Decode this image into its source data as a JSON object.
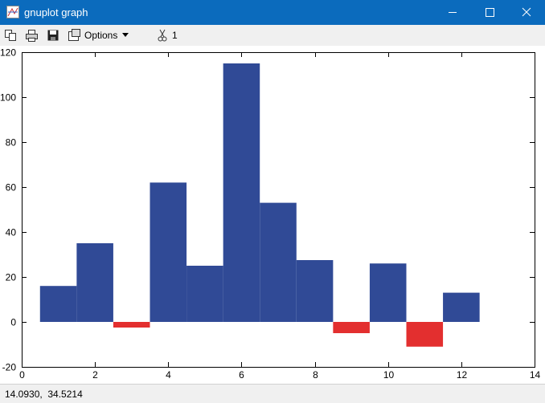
{
  "window": {
    "title": "gnuplot graph",
    "toolbar_options": "Options",
    "toolbar_number": "1",
    "status": "14.0930,  34.5214"
  },
  "chart_data": {
    "type": "bar",
    "x": [
      1,
      2,
      3,
      4,
      5,
      6,
      7,
      8,
      9,
      10,
      11,
      12
    ],
    "values": [
      16,
      35,
      -2.5,
      62,
      25,
      115,
      53,
      27.5,
      -5,
      26,
      -11,
      13
    ],
    "bar_width": 1,
    "color": "#304a96",
    "negative_color": "#e32f2f",
    "xlim": [
      0,
      14
    ],
    "xticks": [
      0,
      2,
      4,
      6,
      8,
      10,
      12,
      14
    ],
    "ylim": [
      -20,
      120
    ],
    "yticks": [
      -20,
      0,
      20,
      40,
      60,
      80,
      100,
      120
    ]
  }
}
